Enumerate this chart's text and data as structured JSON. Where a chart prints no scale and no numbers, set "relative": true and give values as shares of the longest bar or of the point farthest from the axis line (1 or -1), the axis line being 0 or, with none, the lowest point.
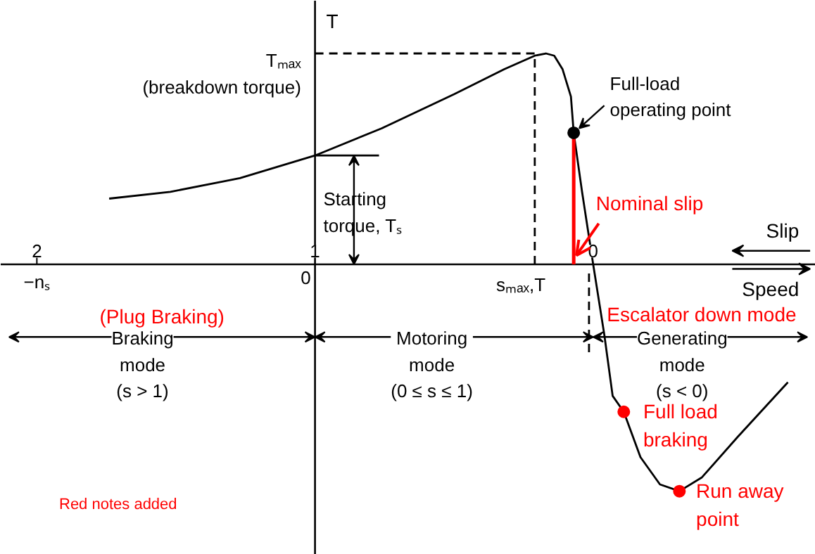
{
  "chart_data": {
    "type": "line",
    "relative": true,
    "ylabel": "T",
    "xlabel": "Speed",
    "x2label": "Slip",
    "xlim": [
      2.13,
      -0.8
    ],
    "xticks": [
      2,
      1,
      0
    ],
    "grid": false,
    "tick_labels": "x",
    "series": [
      {
        "color": "#000000",
        "x": [
          1.74,
          1.52,
          1.27,
          1.0,
          0.76,
          0.5,
          0.32,
          0.21,
          0.17,
          0.14,
          0.11,
          0.08,
          0.07,
          0.04,
          0,
          -0.04,
          -0.07,
          -0.11,
          -0.17,
          -0.24,
          -0.31,
          -0.39,
          -0.52,
          -0.7
        ],
        "values": [
          0.29,
          0.32,
          0.38,
          0.48,
          0.6,
          0.75,
          0.86,
          0.92,
          0.93,
          0.92,
          0.86,
          0.74,
          0.58,
          0.32,
          0,
          -0.31,
          -0.58,
          -0.65,
          -0.85,
          -0.97,
          -1.0,
          -0.94,
          -0.76,
          -0.52
        ]
      },
      {
        "type": "line",
        "color": "#000000",
        "line_style": "dashed",
        "x": [
          1,
          0.21
        ],
        "values": [
          0.93,
          0.93
        ]
      },
      {
        "type": "line",
        "color": "#000000",
        "line_style": "dashed",
        "x": [
          0.21,
          0.21
        ],
        "values": [
          0,
          0.93
        ]
      },
      {
        "type": "line",
        "color": "#000000",
        "line_style": "dashed",
        "x": [
          0.015,
          0.015
        ],
        "values": [
          -0.04,
          -0.4
        ]
      },
      {
        "type": "line",
        "color": "#000000",
        "x": [
          1,
          0.77
        ],
        "values": [
          0.48,
          0.48
        ]
      },
      {
        "type": "line",
        "color": "#ff0000",
        "x": [
          0.07,
          0.07
        ],
        "values": [
          0,
          0.56
        ]
      },
      {
        "type": "scatter",
        "marker": "circle",
        "color": "#000000",
        "x": [
          0.07
        ],
        "values": [
          0.58
        ]
      },
      {
        "type": "scatter",
        "marker": "circle",
        "color": "#ff0000",
        "x": [
          -0.11,
          -0.31
        ],
        "values": [
          -0.65,
          -1.0
        ]
      }
    ],
    "ref_lines": [
      {
        "axis": "x",
        "value": 1,
        "color": "#000000"
      }
    ],
    "annotations": [
      "Tₘₐₓ\n(breakdown torque)",
      "Starting\ntorque, Tₛ",
      "Full-load\noperating point",
      "sₘₐₓ,T",
      "Nominal slip",
      "(Plug Braking)",
      "Braking\nmode\n(s > 1)",
      "Motoring\nmode\n(0 ≤ s ≤ 1)",
      "Generating\nmode\n(s < 0)",
      "Escalator down mode",
      "Full load\nbraking",
      "Run away\npoint",
      "Red notes added",
      "−nₛ",
      "0"
    ]
  }
}
